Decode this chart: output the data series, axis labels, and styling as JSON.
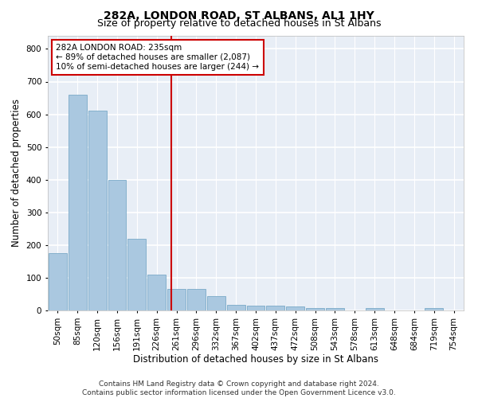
{
  "title": "282A, LONDON ROAD, ST ALBANS, AL1 1HY",
  "subtitle": "Size of property relative to detached houses in St Albans",
  "xlabel": "Distribution of detached houses by size in St Albans",
  "ylabel": "Number of detached properties",
  "categories": [
    "50sqm",
    "85sqm",
    "120sqm",
    "156sqm",
    "191sqm",
    "226sqm",
    "261sqm",
    "296sqm",
    "332sqm",
    "367sqm",
    "402sqm",
    "437sqm",
    "472sqm",
    "508sqm",
    "543sqm",
    "578sqm",
    "613sqm",
    "648sqm",
    "684sqm",
    "719sqm",
    "754sqm"
  ],
  "values": [
    175,
    660,
    610,
    400,
    218,
    110,
    65,
    65,
    45,
    18,
    15,
    15,
    12,
    8,
    8,
    0,
    8,
    0,
    0,
    8,
    0
  ],
  "bar_color": "#aac8e0",
  "bar_edge_color": "#7aaac8",
  "bg_color": "#e8eef6",
  "grid_color": "#ffffff",
  "vline_x": 5.72,
  "vline_color": "#cc0000",
  "annotation_line1": "282A LONDON ROAD: 235sqm",
  "annotation_line2": "← 89% of detached houses are smaller (2,087)",
  "annotation_line3": "10% of semi-detached houses are larger (244) →",
  "annotation_box_color": "#ffffff",
  "annotation_box_edge": "#cc0000",
  "ylim": [
    0,
    840
  ],
  "yticks": [
    0,
    100,
    200,
    300,
    400,
    500,
    600,
    700,
    800
  ],
  "footer": "Contains HM Land Registry data © Crown copyright and database right 2024.\nContains public sector information licensed under the Open Government Licence v3.0.",
  "title_fontsize": 10,
  "subtitle_fontsize": 9,
  "axis_label_fontsize": 8.5,
  "tick_fontsize": 7.5,
  "annotation_fontsize": 7.5,
  "footer_fontsize": 6.5
}
